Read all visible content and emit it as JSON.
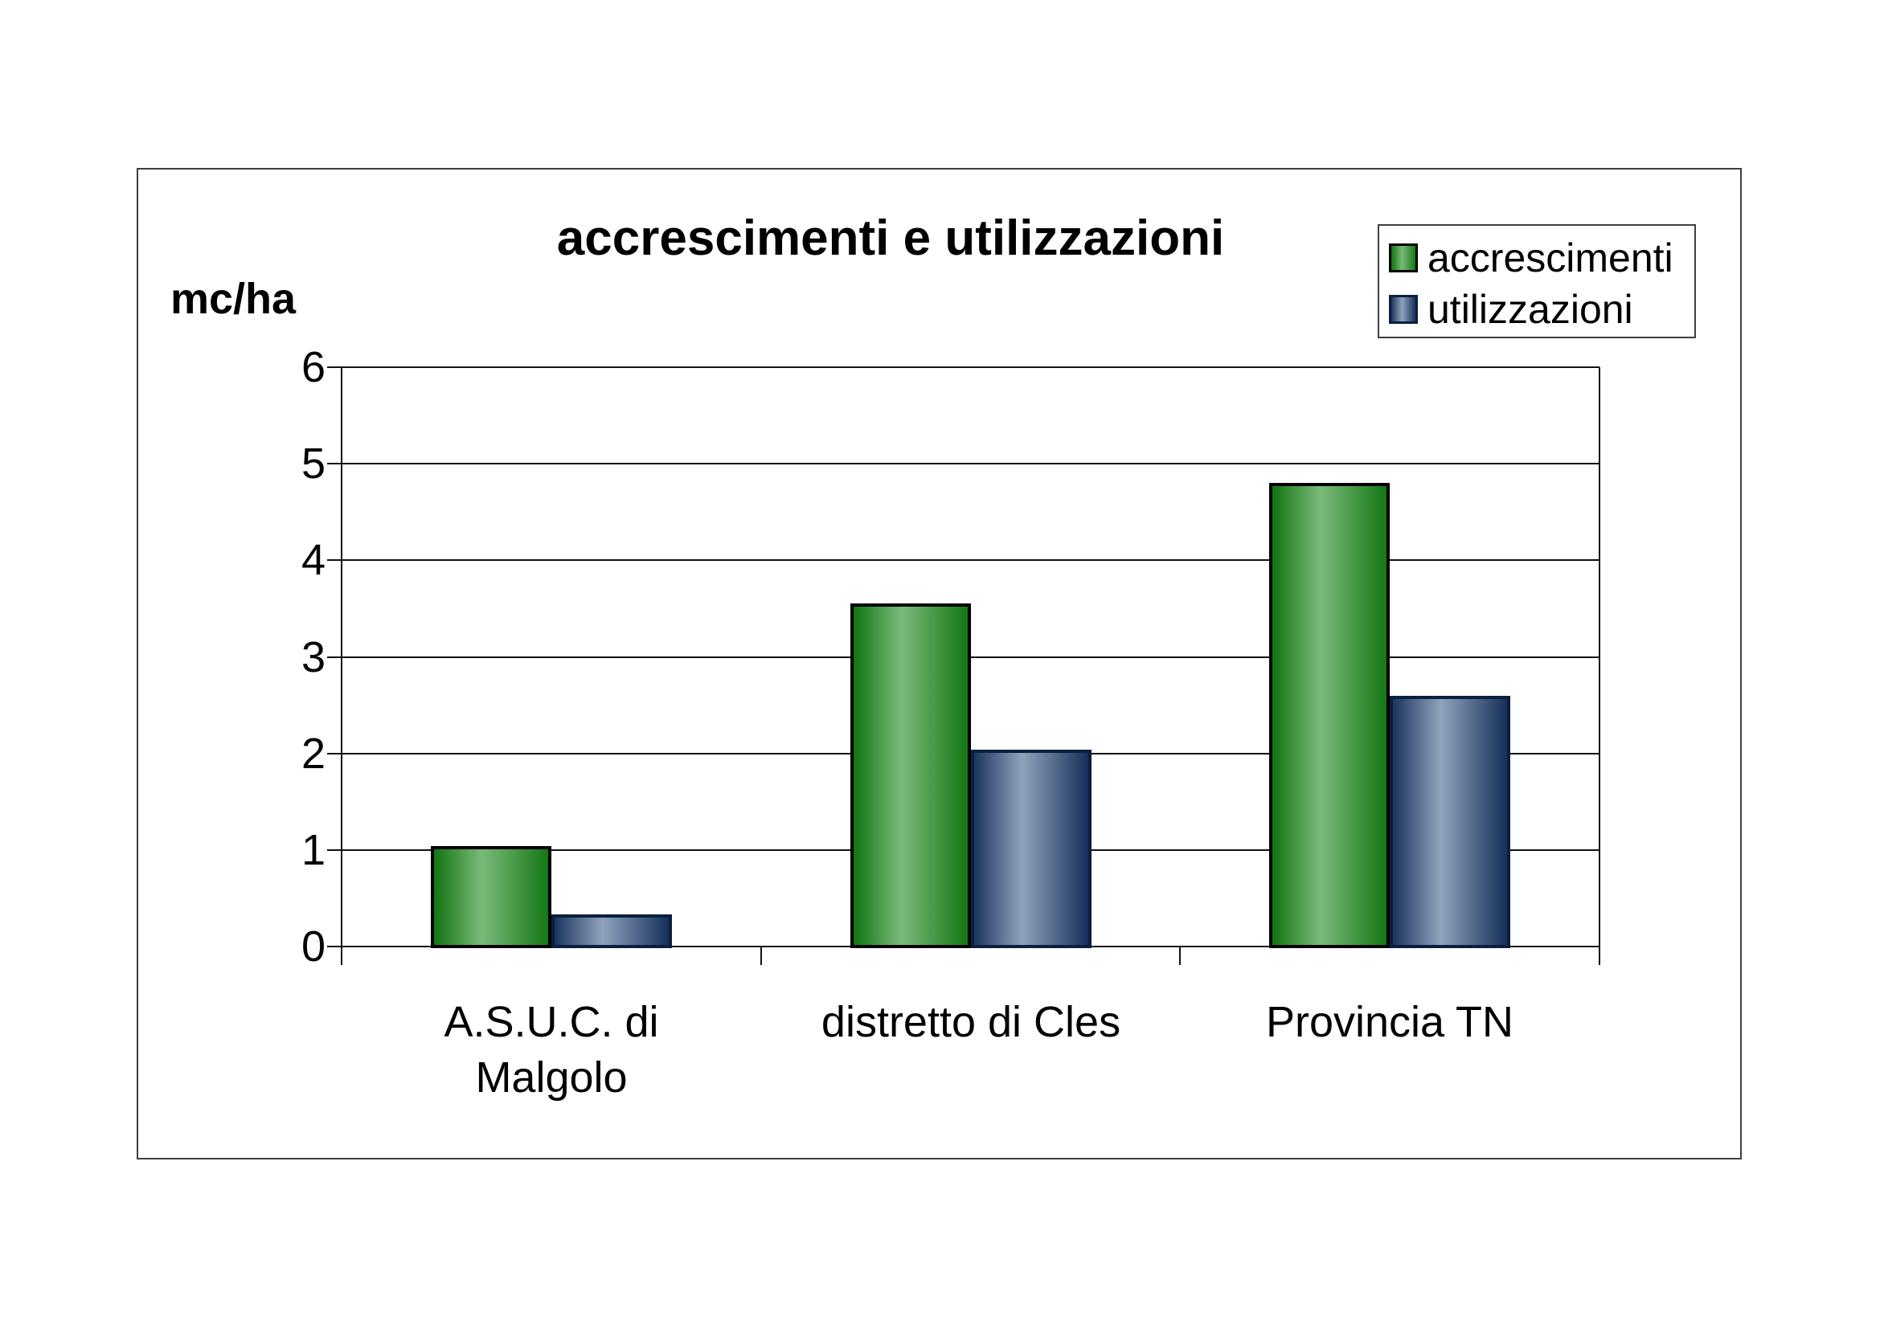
{
  "figure": {
    "background": "#FFFFFF",
    "frame_border_color": "#3F3F3F"
  },
  "chart_data": {
    "type": "bar",
    "title": "accrescimenti e utilizzazioni",
    "ylabel": "mc/ha",
    "categories": [
      "A.S.U.C. di\nMalgolo",
      "distretto di Cles",
      "Provincia TN"
    ],
    "series": [
      {
        "name": "accrescimenti",
        "values": [
          1.04,
          3.55,
          4.8
        ],
        "fill_gradient": [
          "#117511",
          "#7ABA7A",
          "#157815"
        ],
        "border_color": "#000000"
      },
      {
        "name": "utilizzazioni",
        "values": [
          0.33,
          2.04,
          2.6
        ],
        "fill_gradient": [
          "#1C355E",
          "#8FA3BC",
          "#16305A"
        ],
        "border_color": "#0B1F3E"
      }
    ],
    "ylim": [
      0,
      6
    ],
    "yticks": [
      0,
      1,
      2,
      3,
      4,
      5,
      6
    ],
    "grid": true,
    "gridline_color": "#111111",
    "legend_position": "top-right"
  }
}
